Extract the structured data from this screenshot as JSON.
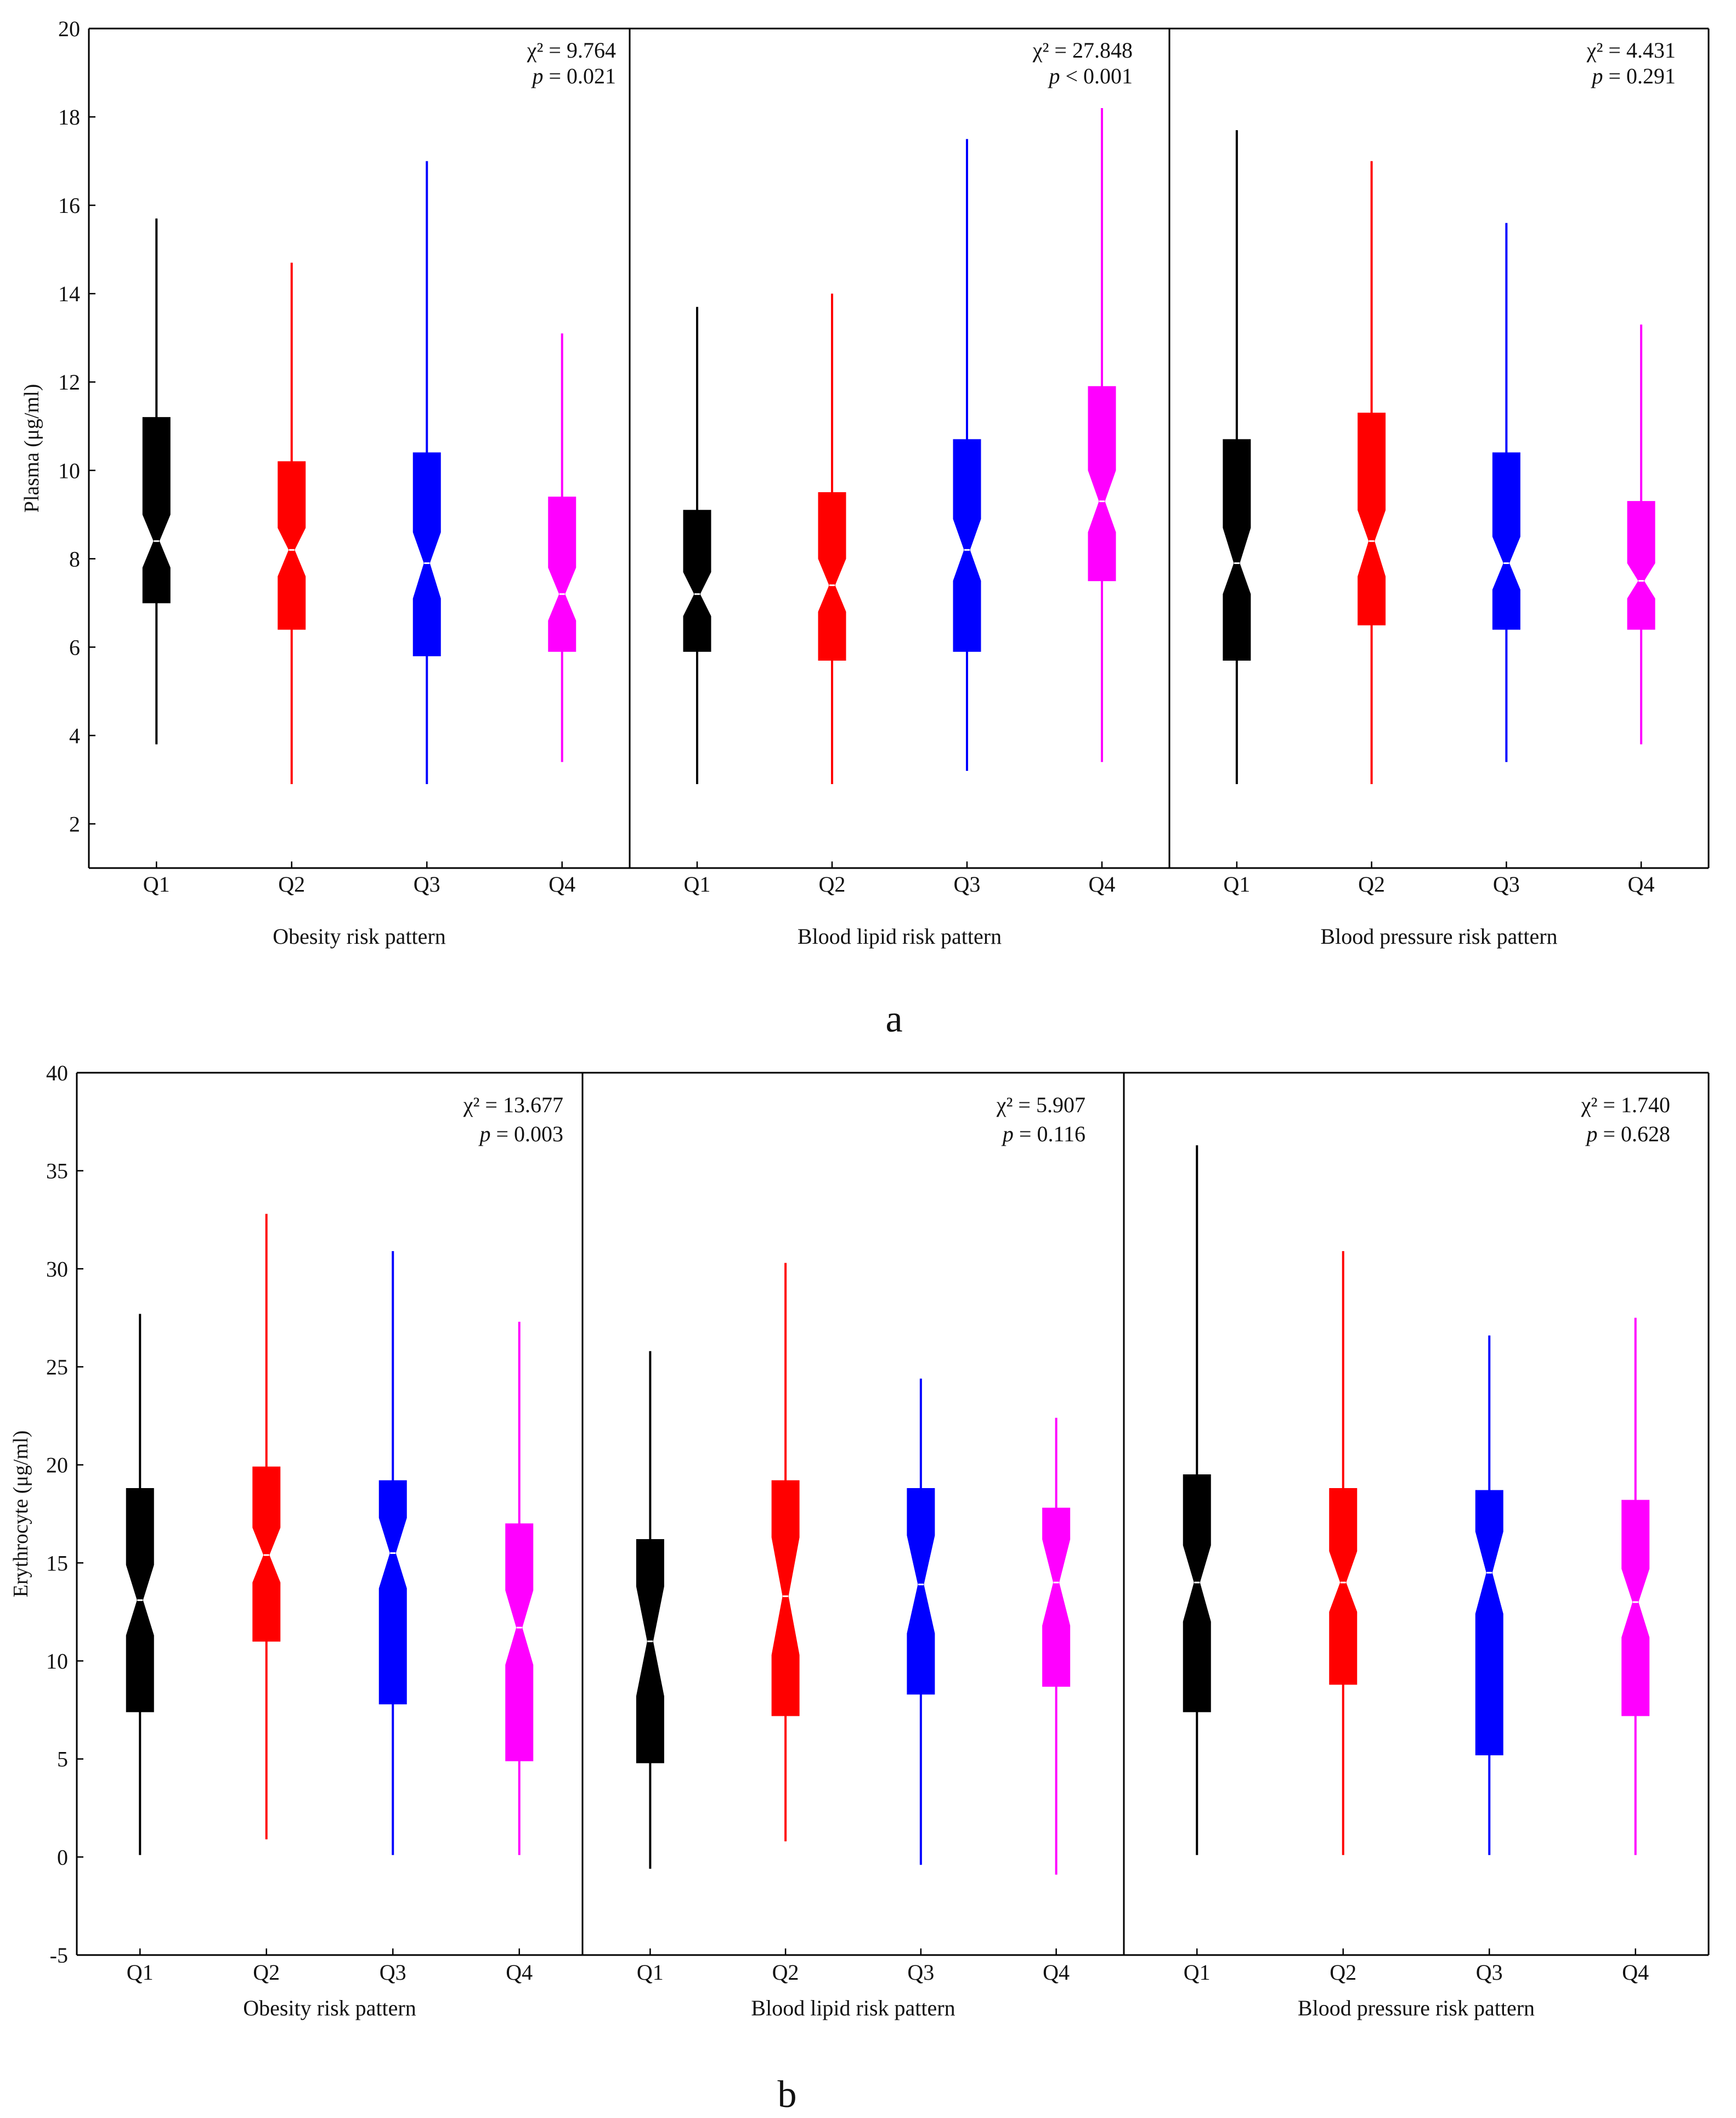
{
  "figure": {
    "panels": [
      {
        "letter": "a",
        "ylabel": "Plasma (μg/ml)",
        "ylim": [
          1,
          20
        ],
        "yticks": [
          2,
          4,
          6,
          8,
          10,
          12,
          14,
          16,
          18,
          20
        ]
      },
      {
        "letter": "b",
        "ylabel": "Erythrocyte (μg/ml)",
        "ylim": [
          -5,
          40
        ],
        "yticks": [
          -5,
          0,
          5,
          10,
          15,
          20,
          25,
          30,
          35,
          40
        ]
      }
    ],
    "categories": [
      "Q1",
      "Q2",
      "Q3",
      "Q4"
    ],
    "series_colors": [
      "#000000",
      "#ff0000",
      "#0000ff",
      "#ff00ff"
    ]
  },
  "chart_data": [
    {
      "type": "boxplot",
      "panel": "a",
      "ylabel": "Plasma (μg/ml)",
      "ylim": [
        1,
        20
      ],
      "notched": true,
      "groups": [
        {
          "name": "Obesity risk pattern",
          "stat_line1": "χ² = 9.764",
          "stat_p_symbol": "p",
          "stat_p_rest": " = 0.021",
          "categories": [
            "Q1",
            "Q2",
            "Q3",
            "Q4"
          ],
          "boxes": [
            {
              "whislo": 3.8,
              "q1": 7.0,
              "med": 8.4,
              "q3": 11.2,
              "whishi": 15.7,
              "notch_lo": 7.8,
              "notch_hi": 9.0
            },
            {
              "whislo": 2.9,
              "q1": 6.4,
              "med": 8.2,
              "q3": 10.2,
              "whishi": 14.7,
              "notch_lo": 7.6,
              "notch_hi": 8.7
            },
            {
              "whislo": 2.9,
              "q1": 5.8,
              "med": 7.9,
              "q3": 10.4,
              "whishi": 17.0,
              "notch_lo": 7.1,
              "notch_hi": 8.6
            },
            {
              "whislo": 3.4,
              "q1": 5.9,
              "med": 7.2,
              "q3": 9.4,
              "whishi": 13.1,
              "notch_lo": 6.6,
              "notch_hi": 7.8
            }
          ]
        },
        {
          "name": "Blood lipid risk pattern",
          "stat_line1": "χ² = 27.848",
          "stat_p_symbol": "p",
          "stat_p_rest": " < 0.001",
          "categories": [
            "Q1",
            "Q2",
            "Q3",
            "Q4"
          ],
          "boxes": [
            {
              "whislo": 2.9,
              "q1": 5.9,
              "med": 7.2,
              "q3": 9.1,
              "whishi": 13.7,
              "notch_lo": 6.7,
              "notch_hi": 7.7
            },
            {
              "whislo": 2.9,
              "q1": 5.7,
              "med": 7.4,
              "q3": 9.5,
              "whishi": 14.0,
              "notch_lo": 6.8,
              "notch_hi": 8.0
            },
            {
              "whislo": 3.2,
              "q1": 5.9,
              "med": 8.2,
              "q3": 10.7,
              "whishi": 17.5,
              "notch_lo": 7.5,
              "notch_hi": 8.9
            },
            {
              "whislo": 3.4,
              "q1": 7.5,
              "med": 9.3,
              "q3": 11.9,
              "whishi": 18.2,
              "notch_lo": 8.6,
              "notch_hi": 10.0
            }
          ]
        },
        {
          "name": "Blood pressure risk pattern",
          "stat_line1": "χ² = 4.431",
          "stat_p_symbol": "p",
          "stat_p_rest": " = 0.291",
          "categories": [
            "Q1",
            "Q2",
            "Q3",
            "Q4"
          ],
          "boxes": [
            {
              "whislo": 2.9,
              "q1": 5.7,
              "med": 7.9,
              "q3": 10.7,
              "whishi": 17.7,
              "notch_lo": 7.2,
              "notch_hi": 8.7
            },
            {
              "whislo": 2.9,
              "q1": 6.5,
              "med": 8.4,
              "q3": 11.3,
              "whishi": 17.0,
              "notch_lo": 7.6,
              "notch_hi": 9.1
            },
            {
              "whislo": 3.4,
              "q1": 6.4,
              "med": 7.9,
              "q3": 10.4,
              "whishi": 15.6,
              "notch_lo": 7.3,
              "notch_hi": 8.5
            },
            {
              "whislo": 3.8,
              "q1": 6.4,
              "med": 7.5,
              "q3": 9.3,
              "whishi": 13.3,
              "notch_lo": 7.1,
              "notch_hi": 7.9
            }
          ]
        }
      ]
    },
    {
      "type": "boxplot",
      "panel": "b",
      "ylabel": "Erythrocyte (μg/ml)",
      "ylim": [
        -5,
        40
      ],
      "notched": true,
      "groups": [
        {
          "name": "Obesity risk pattern",
          "stat_line1": "χ² = 13.677",
          "stat_p_symbol": "p",
          "stat_p_rest": " = 0.003",
          "categories": [
            "Q1",
            "Q2",
            "Q3",
            "Q4"
          ],
          "boxes": [
            {
              "whislo": 0.1,
              "q1": 7.4,
              "med": 13.1,
              "q3": 18.8,
              "whishi": 27.7,
              "notch_lo": 11.3,
              "notch_hi": 14.9
            },
            {
              "whislo": 0.9,
              "q1": 11.0,
              "med": 15.4,
              "q3": 19.9,
              "whishi": 32.8,
              "notch_lo": 14.0,
              "notch_hi": 16.8
            },
            {
              "whislo": 0.1,
              "q1": 7.8,
              "med": 15.5,
              "q3": 19.2,
              "whishi": 30.9,
              "notch_lo": 13.7,
              "notch_hi": 17.3
            },
            {
              "whislo": 0.1,
              "q1": 4.9,
              "med": 11.7,
              "q3": 17.0,
              "whishi": 27.3,
              "notch_lo": 9.8,
              "notch_hi": 13.6
            }
          ]
        },
        {
          "name": "Blood lipid risk pattern",
          "stat_line1": "χ² = 5.907",
          "stat_p_symbol": "p",
          "stat_p_rest": " = 0.116",
          "categories": [
            "Q1",
            "Q2",
            "Q3",
            "Q4"
          ],
          "boxes": [
            {
              "whislo": -0.6,
              "q1": 4.8,
              "med": 11.0,
              "q3": 16.2,
              "whishi": 25.8,
              "notch_lo": 8.2,
              "notch_hi": 13.8
            },
            {
              "whislo": 0.8,
              "q1": 7.2,
              "med": 13.3,
              "q3": 19.2,
              "whishi": 30.3,
              "notch_lo": 10.3,
              "notch_hi": 16.3
            },
            {
              "whislo": -0.4,
              "q1": 8.3,
              "med": 13.9,
              "q3": 18.8,
              "whishi": 24.4,
              "notch_lo": 11.4,
              "notch_hi": 16.4
            },
            {
              "whislo": -0.9,
              "q1": 8.7,
              "med": 14.0,
              "q3": 17.8,
              "whishi": 22.4,
              "notch_lo": 11.8,
              "notch_hi": 16.2
            }
          ]
        },
        {
          "name": "Blood pressure risk pattern",
          "stat_line1": "χ² = 1.740",
          "stat_p_symbol": "p",
          "stat_p_rest": " = 0.628",
          "categories": [
            "Q1",
            "Q2",
            "Q3",
            "Q4"
          ],
          "boxes": [
            {
              "whislo": 0.1,
              "q1": 7.4,
              "med": 14.0,
              "q3": 19.5,
              "whishi": 36.3,
              "notch_lo": 12.0,
              "notch_hi": 15.9
            },
            {
              "whislo": 0.1,
              "q1": 8.8,
              "med": 14.0,
              "q3": 18.8,
              "whishi": 30.9,
              "notch_lo": 12.5,
              "notch_hi": 15.6
            },
            {
              "whislo": 0.1,
              "q1": 5.2,
              "med": 14.5,
              "q3": 18.7,
              "whishi": 26.6,
              "notch_lo": 12.4,
              "notch_hi": 16.6
            },
            {
              "whislo": 0.1,
              "q1": 7.2,
              "med": 13.0,
              "q3": 18.2,
              "whishi": 27.5,
              "notch_lo": 11.2,
              "notch_hi": 14.7
            }
          ]
        }
      ]
    }
  ]
}
